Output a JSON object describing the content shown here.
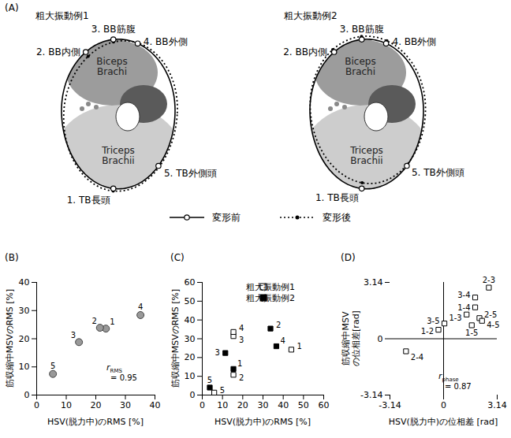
{
  "panel_A": {
    "panel": "(A)",
    "examples": [
      {
        "title": "粗大振動例1",
        "points": [
          "1. TB長頭",
          "2. BB内側",
          "3. BB筋腹",
          "4. BB外側",
          "5. TB外側頭"
        ],
        "muscles": [
          [
            "Biceps",
            "Brachi"
          ],
          [
            "Triceps",
            "Brachii"
          ]
        ]
      },
      {
        "title": "粗大振動例2",
        "points": [
          "1. TB長頭",
          "2. BB内側",
          "3. BB筋腹",
          "4. BB外側",
          "5. TB外側頭"
        ],
        "muscles": [
          [
            "Biceps",
            "Brachi"
          ],
          [
            "Triceps",
            "Brachii"
          ]
        ]
      }
    ],
    "legend": [
      {
        "label": "変形前",
        "line_style": "solid"
      },
      {
        "label": "変形後",
        "line_style": "dotted"
      }
    ]
  },
  "chart_data": [
    {
      "panel": "(B)",
      "type": "scatter",
      "x_label": "HSV(脱力中)のRMS [%]",
      "y_label": [
        "筋収縮中MSVのRMS [%]"
      ],
      "xlim": [
        0,
        40
      ],
      "ylim": [
        0,
        40
      ],
      "xticks": [
        0,
        10,
        20,
        30,
        40
      ],
      "yticks": [
        0,
        10,
        20,
        30,
        40
      ],
      "series": [
        {
          "color": "#999999",
          "marker": "circle",
          "labels": [
            "1",
            "2",
            "3",
            "4",
            "5"
          ],
          "x": [
            23.4,
            21.4,
            14.3,
            35.1,
            5.5
          ],
          "values": [
            23.6,
            23.9,
            18.8,
            28.4,
            7.5
          ]
        }
      ],
      "annotation": {
        "symbol": "r",
        "subscript": "RMS",
        "text": "= 0.95"
      }
    },
    {
      "panel": "(C)",
      "type": "scatter",
      "x_label": "HSV(脱力中)のRMS [%]",
      "y_label": [
        "筋収縮中MSVのRMS [%]"
      ],
      "xlim": [
        0,
        60
      ],
      "ylim": [
        0,
        60
      ],
      "xticks": [
        0,
        10,
        20,
        30,
        40,
        50,
        60
      ],
      "yticks": [
        0,
        10,
        20,
        30,
        40,
        50,
        60
      ],
      "legend": "top-right",
      "series": [
        {
          "name": "粗大振動例1",
          "color": "#000000",
          "marker": "square-open",
          "labels": [
            "1",
            "2",
            "3",
            "4",
            "5"
          ],
          "x": [
            44,
            15.4,
            15.4,
            15.4,
            5.9
          ],
          "values": [
            24.2,
            10.8,
            31.4,
            33.6,
            1.3
          ]
        },
        {
          "name": "粗大振動例2",
          "color": "#000000",
          "marker": "square",
          "labels": [
            "1",
            "2",
            "3",
            "4",
            "5"
          ],
          "x": [
            15.4,
            33.7,
            11.4,
            36.6,
            3.7
          ],
          "values": [
            13.9,
            35.4,
            22.4,
            26,
            4
          ]
        }
      ]
    },
    {
      "panel": "(D)",
      "type": "scatter",
      "x_label": "HSV(脱力中)の位相差 [rad]",
      "y_label": [
        "筋収縮中MSV",
        "の位相差[rad]"
      ],
      "xlim": [
        -3.14,
        3.14
      ],
      "ylim": [
        -3.14,
        3.14
      ],
      "xticks": [
        -3.14,
        0,
        3.14
      ],
      "yticks": [
        -3.14,
        0,
        3.14
      ],
      "series": [
        {
          "color": "#000000",
          "marker": "square-open",
          "labels": [
            "1-2",
            "1-3",
            "1-4",
            "1-5",
            "2-3",
            "2-4",
            "2-5",
            "3-4",
            "3-5",
            "4-5"
          ],
          "x": [
            -0.3,
            1.35,
            1.85,
            1.65,
            2.65,
            -2.2,
            2.1,
            1.85,
            0.05,
            2.25
          ],
          "values": [
            0.5,
            1.35,
            1.75,
            0.75,
            2.85,
            -0.7,
            1.15,
            2.3,
            0.85,
            1.0
          ]
        }
      ],
      "annotation": {
        "symbol": "r",
        "subscript": "phase",
        "text": "= 0.87"
      }
    }
  ]
}
